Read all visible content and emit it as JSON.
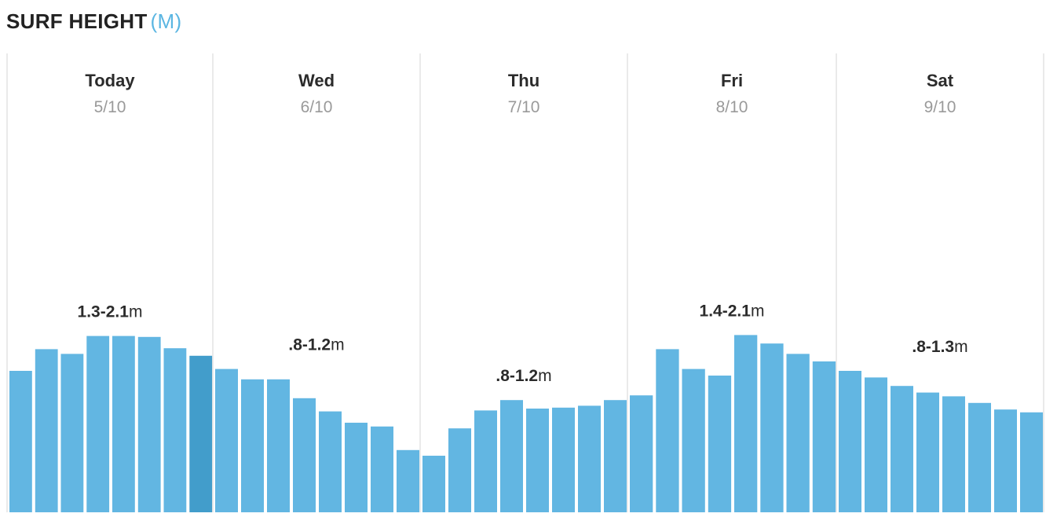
{
  "header": {
    "title": "SURF HEIGHT",
    "unit": "(M)"
  },
  "colors": {
    "bar": "#62b6e2",
    "bar_current": "#429dcb",
    "divider": "#e3e3e3",
    "unit_accent": "#5bb6e2"
  },
  "chart_data": {
    "type": "bar",
    "title": "SURF HEIGHT",
    "unit_label": "(M)",
    "grid": false,
    "days": [
      {
        "name": "Today",
        "date": "5/10",
        "range": "1.3-2.1",
        "range_unit": "m",
        "values": [
          1.5,
          1.73,
          1.68,
          1.87,
          1.87,
          1.86,
          1.74,
          1.66
        ]
      },
      {
        "name": "Wed",
        "date": "6/10",
        "range": ".8-1.2",
        "range_unit": "m",
        "values": [
          1.52,
          1.41,
          1.41,
          1.21,
          1.07,
          0.95,
          0.91,
          0.66
        ]
      },
      {
        "name": "Thu",
        "date": "7/10",
        "range": ".8-1.2",
        "range_unit": "m",
        "values": [
          0.6,
          0.89,
          1.08,
          1.19,
          1.1,
          1.11,
          1.13,
          1.19
        ]
      },
      {
        "name": "Fri",
        "date": "8/10",
        "range": "1.4-2.1",
        "range_unit": "m",
        "values": [
          1.24,
          1.73,
          1.52,
          1.45,
          1.88,
          1.79,
          1.68,
          1.6
        ]
      },
      {
        "name": "Sat",
        "date": "9/10",
        "range": ".8-1.3",
        "range_unit": "m",
        "values": [
          1.5,
          1.43,
          1.34,
          1.27,
          1.23,
          1.16,
          1.09,
          1.06
        ]
      }
    ],
    "current": {
      "day": 0,
      "index": 7
    }
  }
}
